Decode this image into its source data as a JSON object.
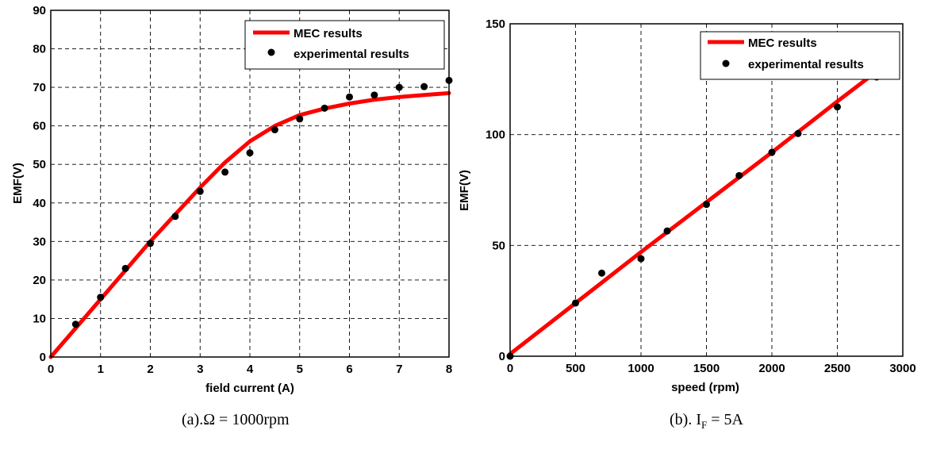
{
  "chart_data": [
    {
      "type": "line",
      "xlabel": "field current (A)",
      "ylabel": "EMF(V)",
      "xlim": [
        0,
        8
      ],
      "ylim": [
        0,
        90
      ],
      "xticks": [
        0,
        1,
        2,
        3,
        4,
        5,
        6,
        7,
        8
      ],
      "yticks": [
        0,
        10,
        20,
        30,
        40,
        50,
        60,
        70,
        80,
        90
      ],
      "grid": true,
      "legend_position": "top-right",
      "series": [
        {
          "name": "MEC results",
          "style": "line",
          "color": "#ff0000",
          "x": [
            0,
            0.5,
            1,
            1.5,
            2,
            2.5,
            3,
            3.5,
            4,
            4.5,
            5,
            5.5,
            6,
            6.5,
            7,
            7.5,
            8
          ],
          "y": [
            0,
            7.5,
            15,
            22.5,
            30,
            37,
            44,
            50.5,
            56,
            60,
            62.8,
            64.5,
            65.8,
            66.8,
            67.5,
            68,
            68.5
          ]
        },
        {
          "name": "experimental results",
          "style": "marker",
          "color": "#000000",
          "x": [
            0.5,
            1,
            1.5,
            2,
            2.5,
            3,
            3.5,
            4,
            4.5,
            5,
            5.5,
            6,
            6.5,
            7,
            7.5,
            8
          ],
          "y": [
            8.5,
            15.5,
            23,
            29.5,
            36.5,
            43,
            48,
            53,
            59,
            61.8,
            64.6,
            67.5,
            68,
            70,
            70.2,
            71.8
          ]
        }
      ],
      "caption": "(a).Ω = 1000rpm"
    },
    {
      "type": "line",
      "xlabel": "speed (rpm)",
      "ylabel": "EMF(V)",
      "xlim": [
        0,
        3000
      ],
      "ylim": [
        0,
        150
      ],
      "xticks": [
        0,
        500,
        1000,
        1500,
        2000,
        2500,
        3000
      ],
      "yticks": [
        0,
        50,
        100,
        150
      ],
      "grid": true,
      "legend_position": "top-right",
      "series": [
        {
          "name": "MEC results",
          "style": "line",
          "color": "#ff0000",
          "x": [
            0,
            500,
            1000,
            1500,
            2000,
            2500,
            2800
          ],
          "y": [
            1,
            24,
            47,
            69.5,
            92,
            115,
            128.5
          ]
        },
        {
          "name": "experimental results",
          "style": "marker",
          "color": "#000000",
          "x": [
            0,
            500,
            700,
            1000,
            1200,
            1500,
            1750,
            2000,
            2200,
            2500,
            2800
          ],
          "y": [
            0,
            24,
            37.5,
            44,
            56.5,
            68.5,
            81.5,
            92,
            100.5,
            112.5,
            126
          ]
        }
      ],
      "caption_prefix": "(b). I",
      "caption_sub": "F",
      "caption_suffix": " = 5A"
    }
  ]
}
